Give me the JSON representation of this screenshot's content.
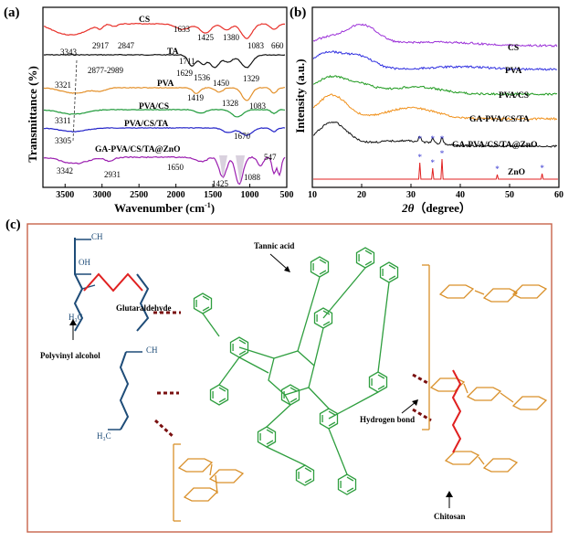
{
  "panels": {
    "a": "(a)",
    "b": "(b)",
    "c": "(c)"
  },
  "colors": {
    "cs": "#e8312a",
    "ta": "#111111",
    "pva": "#e3902a",
    "pva_cs": "#1f9a3a",
    "pva_cs_ta": "#2323c8",
    "ga_zno": "#9b1fb0",
    "xrd_cs": "#9b30d8",
    "xrd_pva": "#2f2fe0",
    "xrd_pvacs": "#1f9a1f",
    "xrd_ga": "#f0901a",
    "xrd_ga_zno": "#111111",
    "xrd_zno": "#e02020",
    "star": "#3535d0",
    "pva_chain": "#1e4c78",
    "glutaraldehyde": "#e02020",
    "tannic": "#2e9e3e",
    "chitosan": "#d9902a",
    "hbond": "#7a1010",
    "frame": "#c8634a"
  },
  "chart_data": [
    {
      "type": "line",
      "title": "",
      "xlabel": "Wavenumber (cm-1)",
      "xlabel_main": "Wavenumber",
      "xlabel_unit": "(cm",
      "xlabel_sup": "-1",
      "xlabel_close": ")",
      "ylabel": "Transmittance (%)",
      "xlim": [
        3800,
        500
      ],
      "xticks": [
        3500,
        3000,
        2500,
        2000,
        1500,
        1000,
        500
      ],
      "series": [
        {
          "name": "CS",
          "annotations": [
            "3343",
            "2917",
            "2847",
            "1633",
            "1425",
            "1380",
            "1083",
            "660"
          ]
        },
        {
          "name": "TA",
          "annotations": [
            "1711",
            "1629",
            "1536",
            "1450",
            "1329"
          ]
        },
        {
          "name": "PVA",
          "annotations": [
            "3321",
            "2877-2989",
            "1419",
            "1328",
            "1083"
          ]
        },
        {
          "name": "PVA/CS",
          "annotations": [
            "3311"
          ]
        },
        {
          "name": "PVA/CS/TA",
          "annotations": [
            "3305",
            "1670"
          ]
        },
        {
          "name": "GA-PVA/CS/TA@ZnO",
          "annotations": [
            "3342",
            "2931",
            "1650",
            "1425",
            "1088",
            "547"
          ]
        }
      ]
    },
    {
      "type": "line",
      "title": "",
      "xlabel": "2θ（degree）",
      "xlabel_theta": "2θ",
      "xlabel_rest": "（degree）",
      "ylabel": "Intensity (a.u.)",
      "xlim": [
        10,
        60
      ],
      "xticks": [
        10,
        20,
        30,
        40,
        50,
        60
      ],
      "series": [
        {
          "name": "CS",
          "peak_2theta": 20
        },
        {
          "name": "PVA",
          "peak_2theta": 19.5
        },
        {
          "name": "PVA/CS",
          "peak_2theta": 19.5
        },
        {
          "name": "GA-PVA/CS/TA",
          "peak_2theta": 14
        },
        {
          "name": "GA-PVA/CS/TA@ZnO",
          "peak_2theta": 14
        },
        {
          "name": "ZnO",
          "peaks_2theta": [
            31.8,
            34.4,
            36.3,
            47.5,
            56.6
          ]
        }
      ]
    }
  ],
  "schematic": {
    "tannic_acid": "Tannic acid",
    "glutaraldehyde": "Glutaraldehyde",
    "polyvinyl_alcohol": "Polyvinyl alcohol",
    "hydrogen_bond": "Hydrogen bond",
    "chitosan": "Chitosan"
  }
}
